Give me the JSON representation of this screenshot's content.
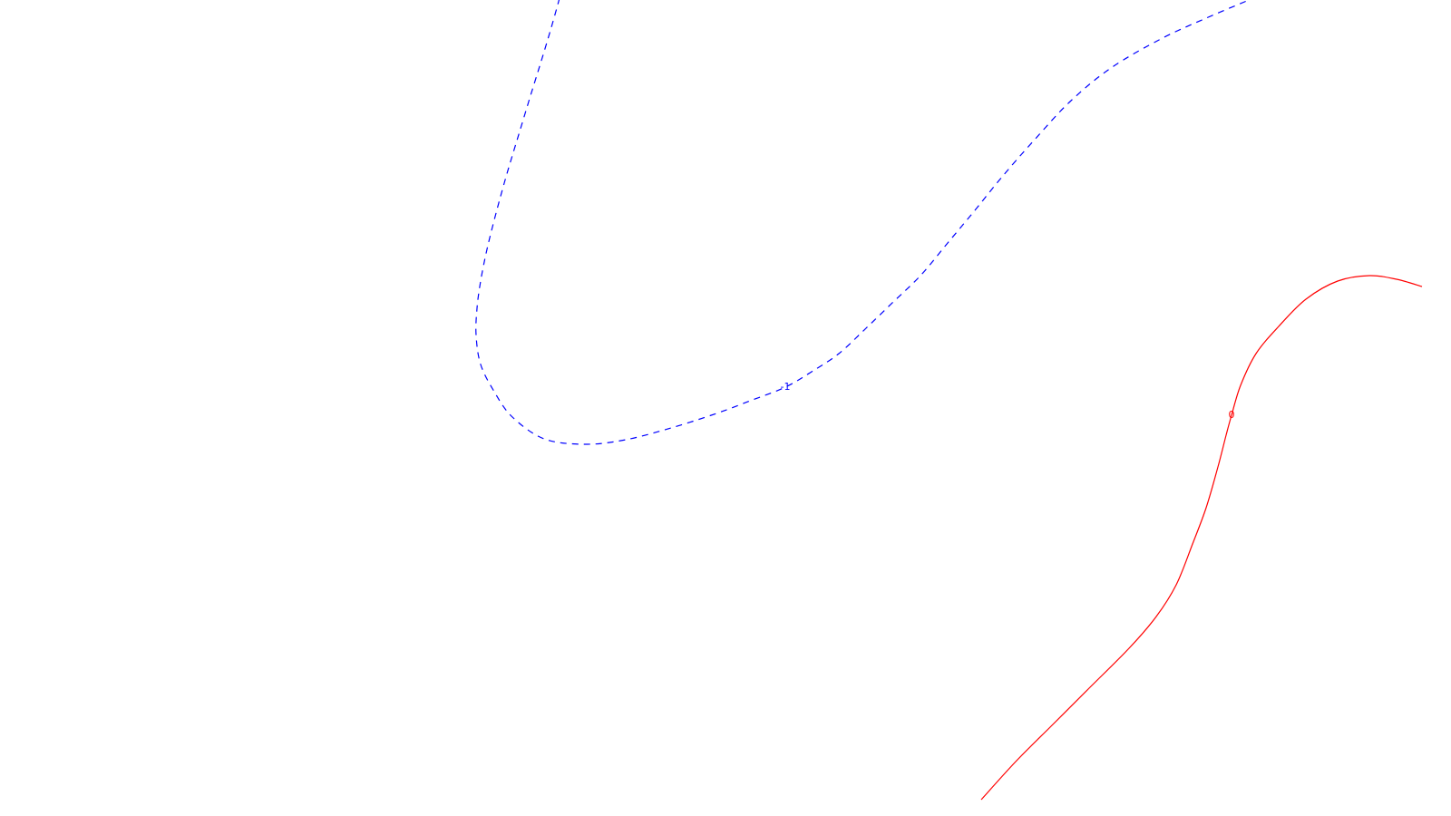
{
  "chart_data": {
    "type": "line",
    "title": "",
    "xlabel": "",
    "ylabel": "",
    "grid": false,
    "legend": "none",
    "series": [
      {
        "contour_level": "-1",
        "label_text": "-1",
        "color": "#0000ff",
        "dashed": true,
        "points": [
          [
            617,
            -2
          ],
          [
            608,
            30
          ],
          [
            596,
            70
          ],
          [
            583,
            112
          ],
          [
            570,
            155
          ],
          [
            558,
            195
          ],
          [
            547,
            235
          ],
          [
            537,
            275
          ],
          [
            530,
            310
          ],
          [
            526,
            340
          ],
          [
            525,
            370
          ],
          [
            530,
            402
          ],
          [
            545,
            432
          ],
          [
            565,
            460
          ],
          [
            600,
            484
          ],
          [
            645,
            490
          ],
          [
            690,
            485
          ],
          [
            740,
            472
          ],
          [
            790,
            456
          ],
          [
            830,
            441
          ],
          [
            866,
            427
          ],
          [
            895,
            410
          ],
          [
            925,
            390
          ],
          [
            955,
            362
          ],
          [
            985,
            333
          ],
          [
            1015,
            304
          ],
          [
            1045,
            268
          ],
          [
            1075,
            232
          ],
          [
            1105,
            195
          ],
          [
            1140,
            155
          ],
          [
            1180,
            112
          ],
          [
            1225,
            75
          ],
          [
            1280,
            43
          ],
          [
            1330,
            20
          ],
          [
            1382,
            -2
          ]
        ]
      },
      {
        "contour_level": "0",
        "label_text": "0",
        "color": "#ff0000",
        "dashed": false,
        "points": [
          [
            1082,
            882
          ],
          [
            1120,
            840
          ],
          [
            1160,
            800
          ],
          [
            1200,
            760
          ],
          [
            1245,
            715
          ],
          [
            1275,
            680
          ],
          [
            1297,
            645
          ],
          [
            1315,
            600
          ],
          [
            1330,
            560
          ],
          [
            1343,
            515
          ],
          [
            1352,
            480
          ],
          [
            1358,
            458
          ],
          [
            1368,
            425
          ],
          [
            1385,
            390
          ],
          [
            1410,
            360
          ],
          [
            1440,
            330
          ],
          [
            1475,
            310
          ],
          [
            1510,
            304
          ],
          [
            1540,
            308
          ],
          [
            1568,
            316
          ]
        ]
      }
    ],
    "labels": [
      {
        "text": "-1",
        "color": "#0000ff",
        "x": 866,
        "y": 427
      },
      {
        "text": "0",
        "color": "#ff0000",
        "x": 1358,
        "y": 458
      }
    ]
  }
}
